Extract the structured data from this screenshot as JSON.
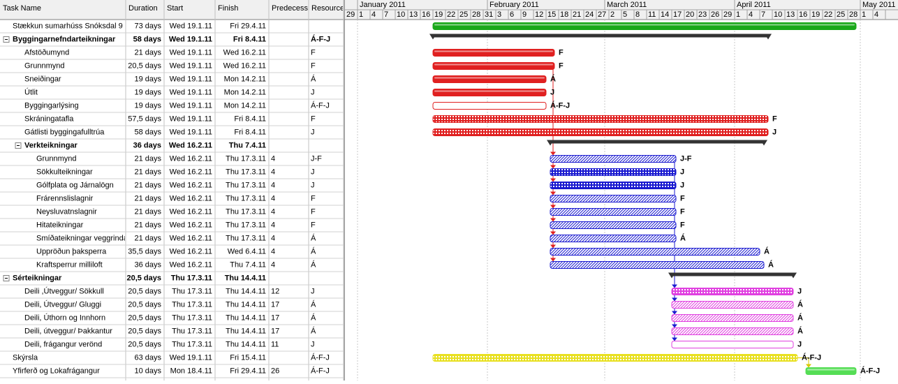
{
  "table": {
    "columns": [
      "Task Name",
      "Duration",
      "Start",
      "Finish",
      "Predecess",
      "Resource"
    ],
    "rows": [
      {
        "name": "Stækkun sumarhúss Snóksdal 9",
        "duration": "73 days",
        "start": "Wed 19.1.11",
        "finish": "Fri 29.4.11",
        "predecessors": null,
        "resource": null,
        "level": 0,
        "summary": false,
        "bar": {
          "color": "#1aa81a",
          "fill": "solid"
        }
      },
      {
        "name": "Byggingarnefndarteikningar",
        "duration": "58 days",
        "start": "Wed 19.1.11",
        "finish": "Fri 8.4.11",
        "predecessors": null,
        "resource": "Á-F-J",
        "level": 0,
        "summary": true,
        "bar": {
          "color": "#333333",
          "fill": "summary"
        }
      },
      {
        "name": "Afstöðumynd",
        "duration": "21 days",
        "start": "Wed 19.1.11",
        "finish": "Wed 16.2.11",
        "predecessors": null,
        "resource": "F",
        "level": 1,
        "summary": false,
        "bar": {
          "color": "#e02020",
          "fill": "solid"
        }
      },
      {
        "name": "Grunnmynd",
        "duration": "20,5 days",
        "start": "Wed 19.1.11",
        "finish": "Wed 16.2.11",
        "predecessors": null,
        "resource": "F",
        "level": 1,
        "summary": false,
        "bar": {
          "color": "#e02020",
          "fill": "solid"
        }
      },
      {
        "name": "Sneiðingar",
        "duration": "19 days",
        "start": "Wed 19.1.11",
        "finish": "Mon 14.2.11",
        "predecessors": null,
        "resource": "Á",
        "level": 1,
        "summary": false,
        "bar": {
          "color": "#e02020",
          "fill": "solid"
        }
      },
      {
        "name": "Útlit",
        "duration": "19 days",
        "start": "Wed 19.1.11",
        "finish": "Mon 14.2.11",
        "predecessors": null,
        "resource": "J",
        "level": 1,
        "summary": false,
        "bar": {
          "color": "#e02020",
          "fill": "solid"
        }
      },
      {
        "name": "Byggingarlýsing",
        "duration": "19 days",
        "start": "Wed 19.1.11",
        "finish": "Mon 14.2.11",
        "predecessors": null,
        "resource": "Á-F-J",
        "level": 1,
        "summary": false,
        "bar": {
          "color": "#e02020",
          "fill": "outline"
        }
      },
      {
        "name": "Skráningatafla",
        "duration": "57,5 days",
        "start": "Wed 19.1.11",
        "finish": "Fri 8.4.11",
        "predecessors": null,
        "resource": "F",
        "level": 1,
        "summary": false,
        "bar": {
          "color": "#e02020",
          "fill": "dense"
        }
      },
      {
        "name": "Gátlisti byggingafulltrúa",
        "duration": "58 days",
        "start": "Wed 19.1.11",
        "finish": "Fri 8.4.11",
        "predecessors": null,
        "resource": "J",
        "level": 1,
        "summary": false,
        "bar": {
          "color": "#e02020",
          "fill": "dense"
        }
      },
      {
        "name": "Verkteikningar",
        "duration": "36 days",
        "start": "Wed 16.2.11",
        "finish": "Thu 7.4.11",
        "predecessors": null,
        "resource": null,
        "level": 1,
        "summary": true,
        "bar": {
          "color": "#333333",
          "fill": "summary"
        }
      },
      {
        "name": "Grunnmynd",
        "duration": "21 days",
        "start": "Wed 16.2.11",
        "finish": "Thu 17.3.11",
        "predecessors": "4",
        "resource": "J-F",
        "level": 2,
        "summary": false,
        "bar": {
          "color": "#1a1ad0",
          "fill": "hatch"
        }
      },
      {
        "name": "Sökkulteikningar",
        "duration": "21 days",
        "start": "Wed 16.2.11",
        "finish": "Thu 17.3.11",
        "predecessors": "4",
        "resource": "J",
        "level": 2,
        "summary": false,
        "bar": {
          "color": "#1a1ad0",
          "fill": "dense"
        }
      },
      {
        "name": "Gólfplata og Járnalögn",
        "duration": "21 days",
        "start": "Wed 16.2.11",
        "finish": "Thu 17.3.11",
        "predecessors": "4",
        "resource": "J",
        "level": 2,
        "summary": false,
        "bar": {
          "color": "#1a1ad0",
          "fill": "dense"
        }
      },
      {
        "name": "Frárennslislagnir",
        "duration": "21 days",
        "start": "Wed 16.2.11",
        "finish": "Thu 17.3.11",
        "predecessors": "4",
        "resource": "F",
        "level": 2,
        "summary": false,
        "bar": {
          "color": "#1a1ad0",
          "fill": "hatch"
        }
      },
      {
        "name": "Neysluvatnslagnir",
        "duration": "21 days",
        "start": "Wed 16.2.11",
        "finish": "Thu 17.3.11",
        "predecessors": "4",
        "resource": "F",
        "level": 2,
        "summary": false,
        "bar": {
          "color": "#1a1ad0",
          "fill": "hatch"
        }
      },
      {
        "name": "Hitateikningar",
        "duration": "21 days",
        "start": "Wed 16.2.11",
        "finish": "Thu 17.3.11",
        "predecessors": "4",
        "resource": "F",
        "level": 2,
        "summary": false,
        "bar": {
          "color": "#1a1ad0",
          "fill": "hatch"
        }
      },
      {
        "name": "Smíðateikningar veggrinda",
        "duration": "21 days",
        "start": "Wed 16.2.11",
        "finish": "Thu 17.3.11",
        "predecessors": "4",
        "resource": "Á",
        "level": 2,
        "summary": false,
        "bar": {
          "color": "#1a1ad0",
          "fill": "hatch"
        }
      },
      {
        "name": "Uppröðun þaksperra",
        "duration": "35,5 days",
        "start": "Wed 16.2.11",
        "finish": "Wed 6.4.11",
        "predecessors": "4",
        "resource": "Á",
        "level": 2,
        "summary": false,
        "bar": {
          "color": "#1a1ad0",
          "fill": "hatch"
        }
      },
      {
        "name": "Kraftsperrur milliloft",
        "duration": "36 days",
        "start": "Wed 16.2.11",
        "finish": "Thu 7.4.11",
        "predecessors": "4",
        "resource": "Á",
        "level": 2,
        "summary": false,
        "bar": {
          "color": "#1a1ad0",
          "fill": "hatch"
        }
      },
      {
        "name": "Sérteikningar",
        "duration": "20,5 days",
        "start": "Thu 17.3.11",
        "finish": "Thu 14.4.11",
        "predecessors": null,
        "resource": null,
        "level": 0,
        "summary": true,
        "bar": {
          "color": "#333333",
          "fill": "summary"
        }
      },
      {
        "name": "Deili ,Útveggur/ Sökkull",
        "duration": "20,5 days",
        "start": "Thu 17.3.11",
        "finish": "Thu 14.4.11",
        "predecessors": "12",
        "resource": "J",
        "level": 1,
        "summary": false,
        "bar": {
          "color": "#e040e0",
          "fill": "dense"
        }
      },
      {
        "name": "Deili, Útveggur/ Gluggi",
        "duration": "20,5 days",
        "start": "Thu 17.3.11",
        "finish": "Thu 14.4.11",
        "predecessors": "17",
        "resource": "Á",
        "level": 1,
        "summary": false,
        "bar": {
          "color": "#e040e0",
          "fill": "hatch"
        }
      },
      {
        "name": "Deili, Úthorn og Innhorn",
        "duration": "20,5 days",
        "start": "Thu 17.3.11",
        "finish": "Thu 14.4.11",
        "predecessors": "17",
        "resource": "Á",
        "level": 1,
        "summary": false,
        "bar": {
          "color": "#e040e0",
          "fill": "hatch"
        }
      },
      {
        "name": "Deili, útveggur/ Þakkantur",
        "duration": "20,5 days",
        "start": "Thu 17.3.11",
        "finish": "Thu 14.4.11",
        "predecessors": "17",
        "resource": "Á",
        "level": 1,
        "summary": false,
        "bar": {
          "color": "#e040e0",
          "fill": "hatch"
        }
      },
      {
        "name": "Deili, frágangur verönd",
        "duration": "20,5 days",
        "start": "Thu 17.3.11",
        "finish": "Thu 14.4.11",
        "predecessors": "11",
        "resource": "J",
        "level": 1,
        "summary": false,
        "bar": {
          "color": "#e040e0",
          "fill": "outline"
        }
      },
      {
        "name": "Skýrsla",
        "duration": "63 days",
        "start": "Wed 19.1.11",
        "finish": "Fri 15.4.11",
        "predecessors": null,
        "resource": "Á-F-J",
        "level": 0,
        "summary": false,
        "bar": {
          "color": "#e8e020",
          "fill": "dense"
        }
      },
      {
        "name": "Yfirferð og Lokafrágangur",
        "duration": "10 days",
        "start": "Mon 18.4.11",
        "finish": "Fri 29.4.11",
        "predecessors": "26",
        "resource": "Á-F-J",
        "level": 0,
        "summary": false,
        "bar": {
          "color": "#55dd55",
          "fill": "solid"
        }
      }
    ]
  },
  "timeline": {
    "months": [
      "January 2011",
      "February 2011",
      "March 2011",
      "April 2011",
      "May 2011"
    ],
    "days": [
      29,
      1,
      4,
      7,
      10,
      13,
      16,
      19,
      22,
      25,
      28,
      31,
      3,
      6,
      9,
      12,
      15,
      18,
      21,
      24,
      27,
      2,
      5,
      8,
      11,
      14,
      17,
      20,
      23,
      26,
      29,
      1,
      4,
      7,
      10,
      13,
      16,
      19,
      22,
      25,
      28,
      1,
      4
    ]
  }
}
